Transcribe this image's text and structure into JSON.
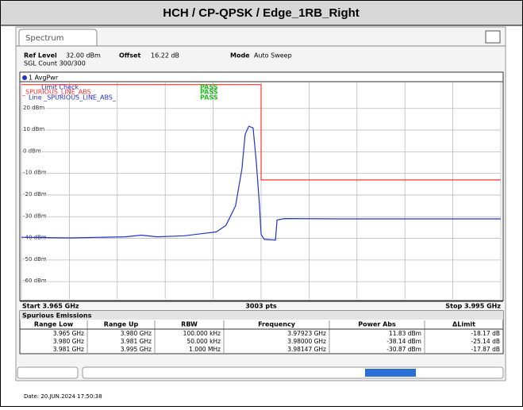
{
  "header": {
    "title": "HCH / CP-QPSK / Edge_1RB_Right"
  },
  "tab": "Spectrum",
  "info": {
    "ref_level_label": "Ref Level",
    "ref_level": "32.00 dBm",
    "offset_label": "Offset",
    "offset": "16.22 dB",
    "mode_label": "Mode",
    "mode": "Auto Sweep",
    "sgl_count": "SGL Count 300/300",
    "trace_label": "1 AvgPwr"
  },
  "limit_check": {
    "title": "Limit Check",
    "title_result": "PASS",
    "limit_name": "_SPURIOUS_LINE_ABS_",
    "limit_result": "PASS",
    "line_name": "Line _SPURIOUS_LINE_ABS_",
    "line_result": "PASS"
  },
  "chart_data": {
    "type": "line",
    "xlim": [
      3.965,
      3.995
    ],
    "ylim": [
      -68,
      32
    ],
    "yticks": [
      {
        "value": 20,
        "label": "20 dBm"
      },
      {
        "value": 10,
        "label": "10 dBm"
      },
      {
        "value": 0,
        "label": "0 dBm"
      },
      {
        "value": -10,
        "label": "-10 dBm"
      },
      {
        "value": -20,
        "label": "-20 dBm"
      },
      {
        "value": -30,
        "label": "-30 dBm"
      },
      {
        "value": -40,
        "label": "-40 dBm"
      },
      {
        "value": -50,
        "label": "-50 dBm"
      },
      {
        "value": -60,
        "label": "-60 dBm"
      }
    ],
    "xticks": [
      3.965,
      3.968,
      3.971,
      3.974,
      3.977,
      3.98,
      3.983,
      3.986,
      3.989,
      3.992,
      3.995
    ],
    "grid": true,
    "series": [
      {
        "color": "#2233cc",
        "x": [
          3.965,
          3.968,
          3.9715,
          3.9725,
          3.9735,
          3.9752,
          3.9772,
          3.9778,
          3.9784,
          3.9788,
          3.979,
          3.97923,
          3.9795,
          3.9797,
          3.9799,
          3.98,
          3.9802,
          3.9809,
          3.981,
          3.98147,
          3.985,
          3.99,
          3.995
        ],
        "values": [
          -39.5,
          -39.8,
          -39.3,
          -38.5,
          -39.3,
          -38.8,
          -37,
          -34,
          -25,
          -8,
          8,
          11.83,
          11,
          -5,
          -25,
          -38.14,
          -40.5,
          -40.8,
          -31.5,
          -30.87,
          -31,
          -31,
          -31
        ]
      },
      {
        "color": "#ff3333",
        "x": [
          3.965,
          3.98,
          3.98,
          3.995
        ],
        "values": [
          31,
          31,
          -13,
          -13
        ]
      }
    ],
    "x_start": "Start 3.965 GHz",
    "points": "3003 pts",
    "x_stop": "Stop 3.995 GHz"
  },
  "table": {
    "title": "Spurious Emissions",
    "columns": [
      "Range Low",
      "Range Up",
      "RBW",
      "Frequency",
      "Power Abs",
      "ΔLimit"
    ],
    "rows": [
      [
        "3.965 GHz",
        "3.980 GHz",
        "100.000 kHz",
        "3.97923 GHz",
        "11.83 dBm",
        "-18.17 dB"
      ],
      [
        "3.980 GHz",
        "3.981 GHz",
        "50.000 kHz",
        "3.98000 GHz",
        "-38.14 dBm",
        "-25.14 dB"
      ],
      [
        "3.981 GHz",
        "3.995 GHz",
        "1.000 MHz",
        "3.98147 GHz",
        "-30.87 dBm",
        "-17.87 dB"
      ]
    ]
  },
  "date": "Date: 20.JUN.2024 17:50:38"
}
